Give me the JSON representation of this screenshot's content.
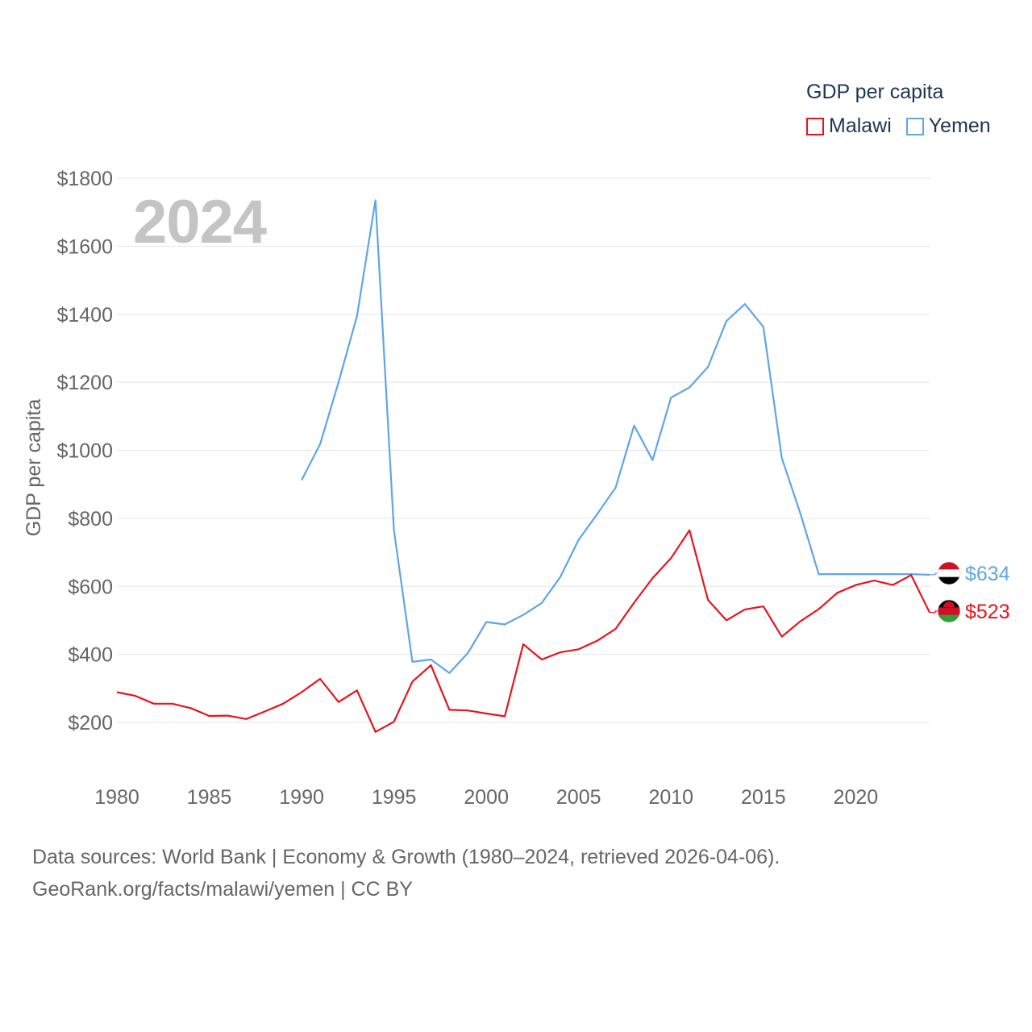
{
  "legend": {
    "title": "GDP per capita",
    "items": [
      {
        "name": "Malawi",
        "color": "#e8141b"
      },
      {
        "name": "Yemen",
        "color": "#60a5e8"
      }
    ]
  },
  "year_label": "2024",
  "footer": {
    "line1": "Data sources: World Bank | Economy & Growth (1980–2024, retrieved 2026-04-06).",
    "line2": "GeoRank.org/facts/malawi/yemen | CC BY"
  },
  "chart_data": {
    "type": "line",
    "title": "GDP per capita",
    "ylabel": "GDP per capita",
    "xlabel": "",
    "xlim": [
      1980,
      2024
    ],
    "ylim": [
      60,
      1800
    ],
    "y_ticks": [
      200,
      400,
      600,
      800,
      1000,
      1200,
      1400,
      1600,
      1800
    ],
    "y_tick_labels": [
      "$200",
      "$400",
      "$600",
      "$800",
      "$1000",
      "$1200",
      "$1400",
      "$1600",
      "$1800"
    ],
    "x_ticks": [
      1980,
      1985,
      1990,
      1995,
      2000,
      2005,
      2010,
      2015,
      2020
    ],
    "x_tick_labels": [
      "1980",
      "1985",
      "1990",
      "1995",
      "2000",
      "2005",
      "2010",
      "2015",
      "2020"
    ],
    "grid": true,
    "series": [
      {
        "name": "Malawi",
        "color": "#e8141b",
        "end_label": "$523",
        "flag": "malawi",
        "x": [
          1980,
          1981,
          1982,
          1983,
          1984,
          1985,
          1986,
          1987,
          1988,
          1989,
          1990,
          1991,
          1992,
          1993,
          1994,
          1995,
          1996,
          1997,
          1998,
          1999,
          2000,
          2001,
          2002,
          2003,
          2004,
          2005,
          2006,
          2007,
          2008,
          2009,
          2010,
          2011,
          2012,
          2013,
          2014,
          2015,
          2016,
          2017,
          2018,
          2019,
          2020,
          2021,
          2022,
          2023,
          2024
        ],
        "values": [
          289,
          278,
          255,
          255,
          242,
          219,
          220,
          210,
          232,
          255,
          289,
          328,
          260,
          294,
          172,
          202,
          320,
          368,
          237,
          235,
          226,
          218,
          430,
          385,
          406,
          415,
          440,
          475,
          552,
          624,
          683,
          765,
          560,
          500,
          532,
          541,
          452,
          497,
          533,
          581,
          604,
          617,
          604,
          633,
          523
        ]
      },
      {
        "name": "Yemen",
        "color": "#60a5e8",
        "end_label": "$634",
        "flag": "yemen",
        "x": [
          1990,
          1991,
          1992,
          1993,
          1994,
          1995,
          1996,
          1997,
          1998,
          1999,
          2000,
          2001,
          2002,
          2003,
          2004,
          2005,
          2006,
          2007,
          2008,
          2009,
          2010,
          2011,
          2012,
          2013,
          2014,
          2015,
          2016,
          2017,
          2018,
          2019,
          2020,
          2021,
          2022,
          2023,
          2024
        ],
        "values": [
          912,
          1018,
          1200,
          1395,
          1735,
          765,
          378,
          385,
          345,
          404,
          495,
          488,
          516,
          551,
          627,
          737,
          812,
          890,
          1073,
          971,
          1155,
          1185,
          1245,
          1380,
          1430,
          1363,
          977,
          815,
          636,
          636,
          636,
          636,
          636,
          636,
          634
        ]
      }
    ]
  }
}
